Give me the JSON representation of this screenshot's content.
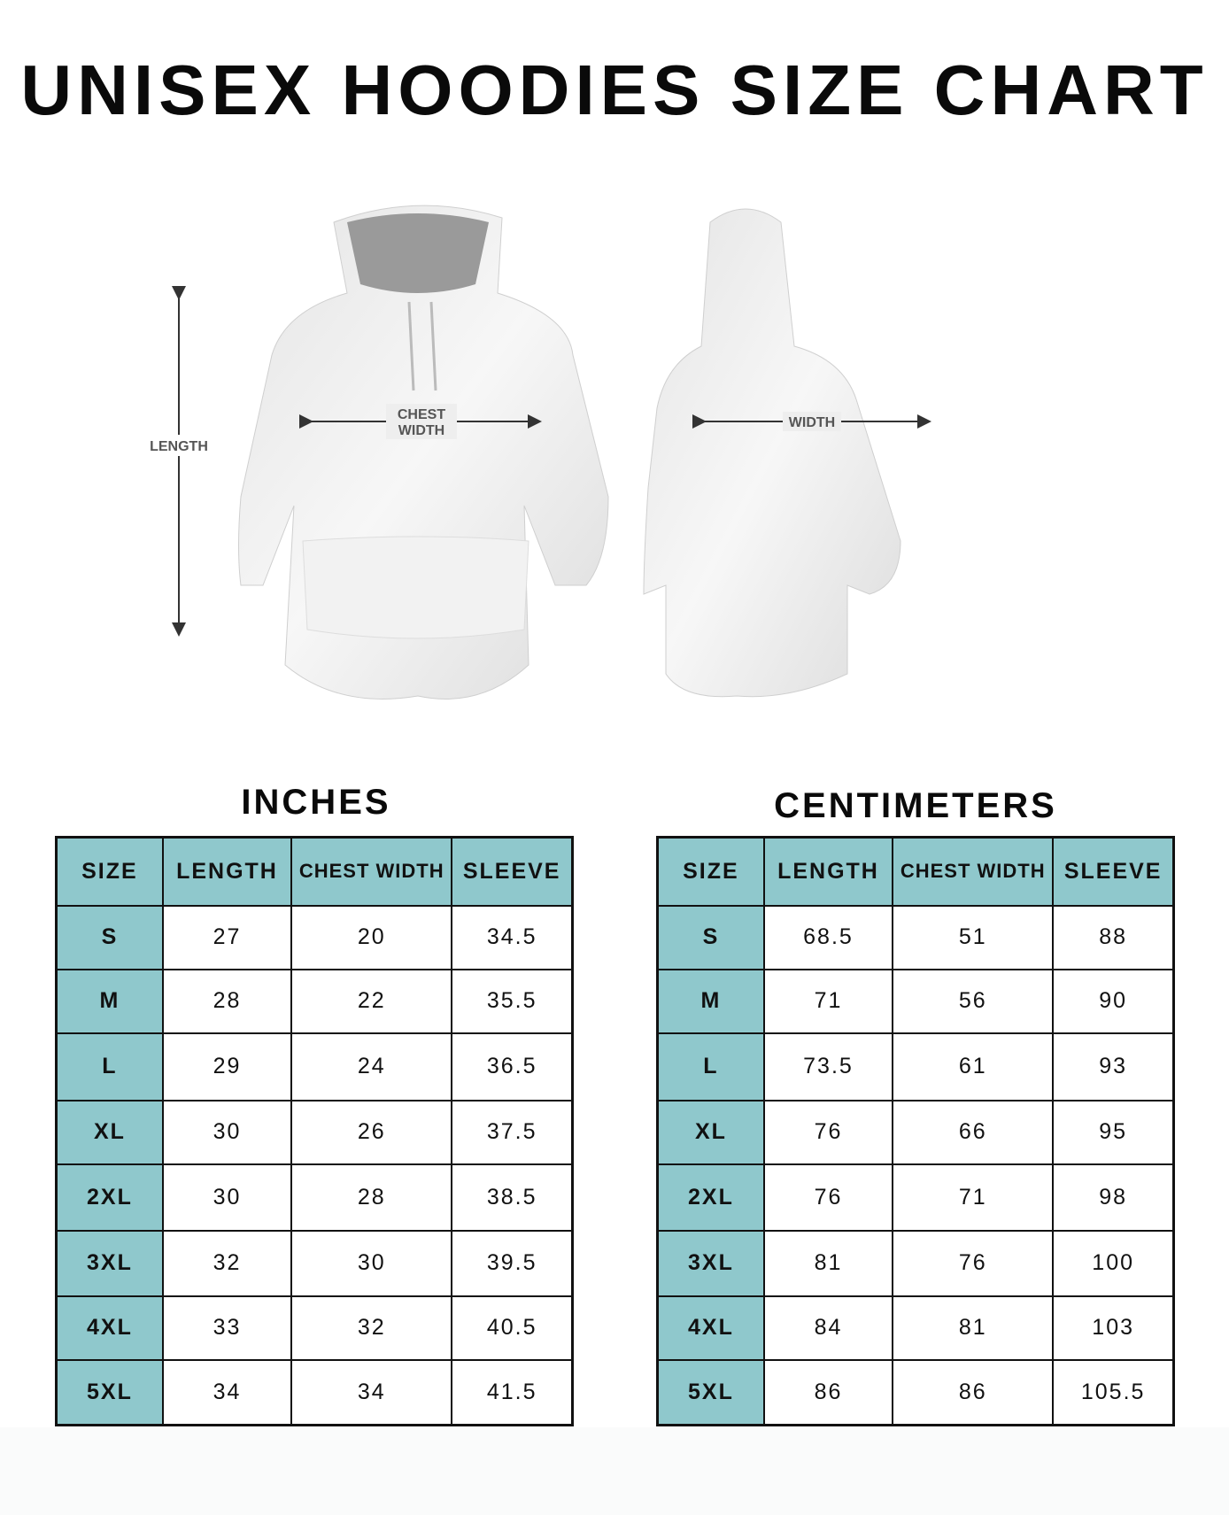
{
  "title": "UNISEX HOODIES SIZE CHART",
  "figure": {
    "length_label": "LENGTH",
    "chest_label_1": "CHEST",
    "chest_label_2": "WIDTH",
    "width_label": "WIDTH"
  },
  "colors": {
    "header": "#8fc8cc",
    "border": "#111111"
  },
  "inches": {
    "title": "INCHES",
    "headers": [
      "SIZE",
      "LENGTH",
      "CHEST WIDTH",
      "SLEEVE"
    ],
    "rows": [
      [
        "S",
        "27",
        "20",
        "34.5"
      ],
      [
        "M",
        "28",
        "22",
        "35.5"
      ],
      [
        "L",
        "29",
        "24",
        "36.5"
      ],
      [
        "XL",
        "30",
        "26",
        "37.5"
      ],
      [
        "2XL",
        "30",
        "28",
        "38.5"
      ],
      [
        "3XL",
        "32",
        "30",
        "39.5"
      ],
      [
        "4XL",
        "33",
        "32",
        "40.5"
      ],
      [
        "5XL",
        "34",
        "34",
        "41.5"
      ]
    ]
  },
  "centimeters": {
    "title": "CENTIMETERS",
    "headers": [
      "SIZE",
      "LENGTH",
      "CHEST WIDTH",
      "SLEEVE"
    ],
    "rows": [
      [
        "S",
        "68.5",
        "51",
        "88"
      ],
      [
        "M",
        "71",
        "56",
        "90"
      ],
      [
        "L",
        "73.5",
        "61",
        "93"
      ],
      [
        "XL",
        "76",
        "66",
        "95"
      ],
      [
        "2XL",
        "76",
        "71",
        "98"
      ],
      [
        "3XL",
        "81",
        "76",
        "100"
      ],
      [
        "4XL",
        "84",
        "81",
        "103"
      ],
      [
        "5XL",
        "86",
        "86",
        "105.5"
      ]
    ]
  }
}
